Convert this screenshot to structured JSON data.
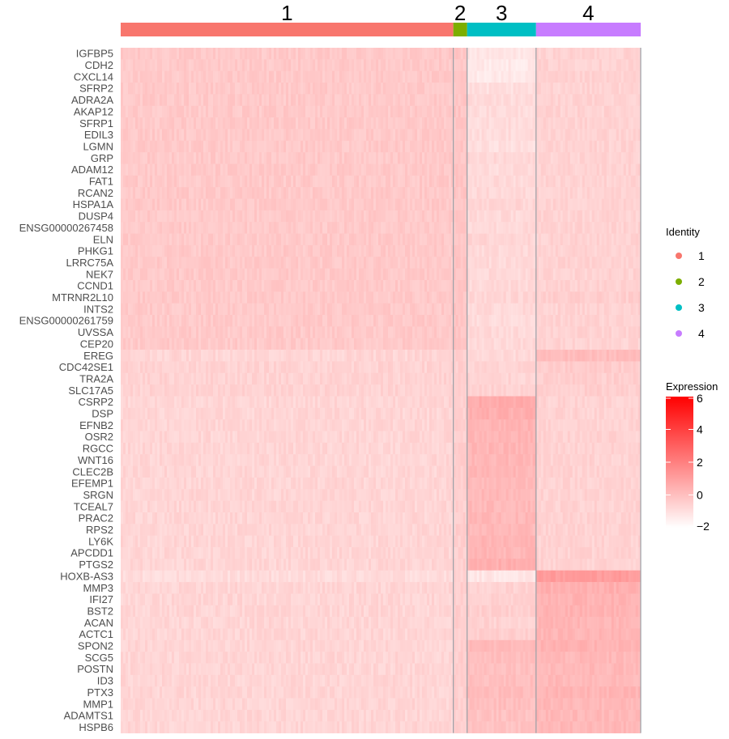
{
  "chart_data": {
    "type": "heatmap",
    "genes": [
      "IGFBP5",
      "CDH2",
      "CXCL14",
      "SFRP2",
      "ADRA2A",
      "AKAP12",
      "SFRP1",
      "EDIL3",
      "LGMN",
      "GRP",
      "ADAM12",
      "FAT1",
      "RCAN2",
      "HSPA1A",
      "DUSP4",
      "ENSG00000267458",
      "ELN",
      "PHKG1",
      "LRRC75A",
      "NEK7",
      "CCND1",
      "MTRNR2L10",
      "INTS2",
      "ENSG00000261759",
      "UVSSA",
      "CEP20",
      "EREG",
      "CDC42SE1",
      "TRA2A",
      "SLC17A5",
      "CSRP2",
      "DSP",
      "EFNB2",
      "OSR2",
      "RGCC",
      "WNT16",
      "CLEC2B",
      "EFEMP1",
      "SRGN",
      "TCEAL7",
      "PRAC2",
      "RPS2",
      "LY6K",
      "APCDD1",
      "PTGS2",
      "HOXB-AS3",
      "MMP3",
      "IFI27",
      "BST2",
      "ACAN",
      "ACTC1",
      "SPON2",
      "SCG5",
      "POSTN",
      "ID3",
      "PTX3",
      "MMP1",
      "ADAMTS1",
      "HSPB6"
    ],
    "clusters": [
      {
        "label": "1",
        "color": "#F8766D",
        "cells": 410
      },
      {
        "label": "2",
        "color": "#7CAE00",
        "cells": 17
      },
      {
        "label": "3",
        "color": "#00BFC4",
        "cells": 85
      },
      {
        "label": "4",
        "color": "#C77CFF",
        "cells": 129
      }
    ],
    "block_mean_expression": [
      [
        -0.3,
        -0.2,
        -1.2,
        -0.6
      ],
      [
        -0.3,
        -0.2,
        -1.3,
        -0.6
      ],
      [
        -0.3,
        -0.2,
        -1.3,
        -0.6
      ],
      [
        -0.3,
        -0.2,
        -1.0,
        -0.6
      ],
      [
        -0.3,
        -0.2,
        -0.9,
        -0.6
      ],
      [
        -0.3,
        -0.2,
        -0.9,
        -0.6
      ],
      [
        -0.3,
        -0.2,
        -0.9,
        -0.6
      ],
      [
        -0.3,
        -0.2,
        -0.9,
        -0.6
      ],
      [
        -0.3,
        -0.2,
        -1.0,
        -0.6
      ],
      [
        -0.3,
        -0.2,
        -0.8,
        -0.6
      ],
      [
        -0.3,
        -0.2,
        -0.9,
        -0.6
      ],
      [
        -0.3,
        -0.2,
        -0.8,
        -0.6
      ],
      [
        -0.3,
        -0.2,
        -0.8,
        -0.6
      ],
      [
        -0.3,
        -0.2,
        -0.7,
        -0.6
      ],
      [
        -0.3,
        -0.2,
        -0.8,
        -0.6
      ],
      [
        -0.3,
        -0.2,
        -0.8,
        -0.6
      ],
      [
        -0.3,
        -0.2,
        -0.7,
        -0.6
      ],
      [
        -0.3,
        -0.2,
        -0.8,
        -0.6
      ],
      [
        -0.3,
        -0.2,
        -0.8,
        -0.6
      ],
      [
        -0.3,
        -0.2,
        -0.8,
        -0.6
      ],
      [
        -0.3,
        -0.2,
        -0.8,
        -0.6
      ],
      [
        -0.3,
        -0.2,
        -0.7,
        -0.5
      ],
      [
        -0.3,
        -0.2,
        -0.8,
        -0.6
      ],
      [
        -0.3,
        -0.2,
        -0.9,
        -0.6
      ],
      [
        -0.3,
        -0.2,
        -0.8,
        -0.6
      ],
      [
        -0.3,
        -0.2,
        -0.8,
        -0.6
      ],
      [
        -0.7,
        -0.5,
        -0.8,
        0.1
      ],
      [
        -0.6,
        -0.5,
        -0.7,
        -0.4
      ],
      [
        -0.6,
        -0.5,
        -0.7,
        -0.5
      ],
      [
        -0.6,
        -0.5,
        -0.6,
        -0.5
      ],
      [
        -0.7,
        -0.5,
        0.6,
        -0.6
      ],
      [
        -0.7,
        -0.5,
        0.5,
        -0.6
      ],
      [
        -0.7,
        -0.5,
        0.4,
        -0.6
      ],
      [
        -0.7,
        -0.5,
        0.3,
        -0.6
      ],
      [
        -0.7,
        -0.5,
        0.3,
        -0.6
      ],
      [
        -0.7,
        -0.5,
        0.3,
        -0.6
      ],
      [
        -0.7,
        -0.5,
        0.3,
        -0.6
      ],
      [
        -0.7,
        -0.5,
        0.2,
        -0.6
      ],
      [
        -0.7,
        -0.5,
        0.2,
        -0.6
      ],
      [
        -0.7,
        -0.5,
        0.2,
        -0.6
      ],
      [
        -0.7,
        -0.5,
        0.2,
        -0.6
      ],
      [
        -0.7,
        -0.5,
        0.2,
        -0.6
      ],
      [
        -0.7,
        -0.5,
        0.3,
        -0.6
      ],
      [
        -0.7,
        -0.5,
        0.3,
        -0.6
      ],
      [
        -0.7,
        -0.5,
        0.5,
        -0.6
      ],
      [
        -0.9,
        -0.6,
        -1.2,
        1.1
      ],
      [
        -0.7,
        -0.5,
        -0.6,
        0.5
      ],
      [
        -0.7,
        -0.5,
        -0.6,
        0.4
      ],
      [
        -0.7,
        -0.5,
        -0.5,
        0.4
      ],
      [
        -0.7,
        -0.5,
        -0.6,
        0.3
      ],
      [
        -0.7,
        -0.5,
        -0.5,
        0.3
      ],
      [
        -0.7,
        -0.5,
        0.2,
        0.4
      ],
      [
        -0.7,
        -0.5,
        0.0,
        0.2
      ],
      [
        -0.7,
        -0.5,
        0.0,
        0.2
      ],
      [
        -0.7,
        -0.5,
        0.0,
        0.2
      ],
      [
        -0.7,
        -0.5,
        0.1,
        0.3
      ],
      [
        -0.7,
        -0.5,
        0.0,
        0.2
      ],
      [
        -0.7,
        -0.5,
        -0.1,
        0.2
      ],
      [
        -0.7,
        -0.5,
        -0.1,
        0.2
      ]
    ],
    "legend": {
      "identity_title": "Identity",
      "identity_items": [
        {
          "label": "1",
          "color": "#F8766D"
        },
        {
          "label": "2",
          "color": "#7CAE00"
        },
        {
          "label": "3",
          "color": "#00BFC4"
        },
        {
          "label": "4",
          "color": "#C77CFF"
        }
      ],
      "expression_title": "Expression",
      "expression_ticks": [
        "6",
        "4",
        "2",
        "0",
        "−2"
      ],
      "expression_range": [
        -2,
        6
      ],
      "colors": {
        "low": "#FFFFFF",
        "high": "#FF0000"
      }
    }
  }
}
